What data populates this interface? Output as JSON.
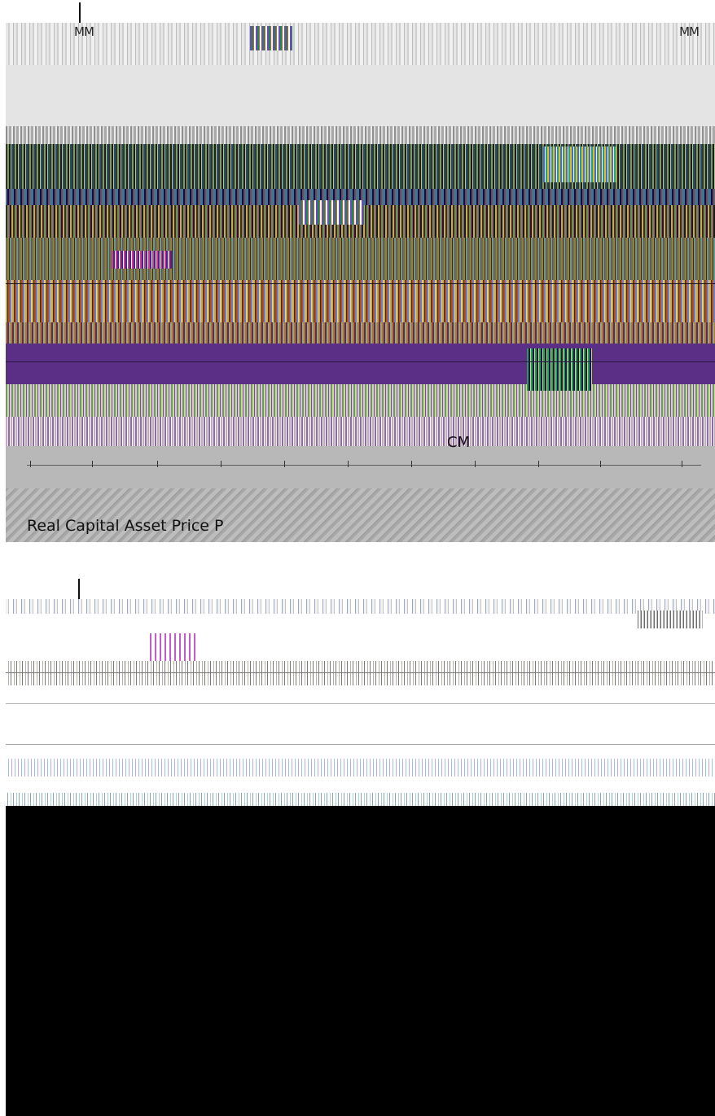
{
  "top_panel": {
    "label_left": "MM",
    "label_right": "MM",
    "label_center": "CM",
    "title": "Real Capital Asset Price P"
  },
  "colors": {
    "black_region": "#000000",
    "purple_band": "#5b2f86",
    "grey_footer": "#b8b8b8"
  }
}
